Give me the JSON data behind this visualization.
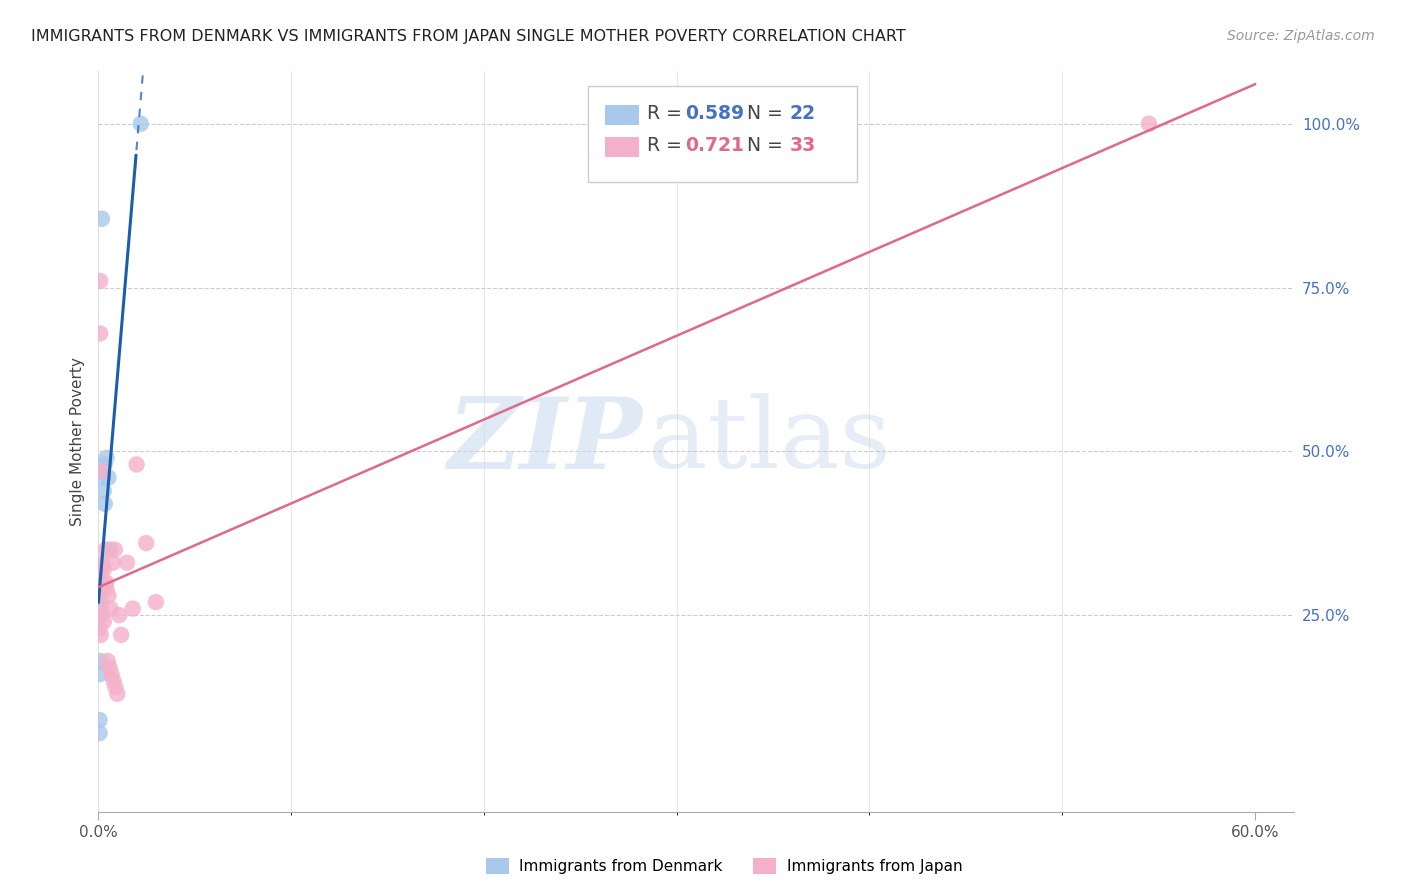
{
  "title": "IMMIGRANTS FROM DENMARK VS IMMIGRANTS FROM JAPAN SINGLE MOTHER POVERTY CORRELATION CHART",
  "source": "Source: ZipAtlas.com",
  "ylabel": "Single Mother Poverty",
  "denmark_color": "#a8c8ec",
  "denmark_line_color": "#1a5faa",
  "japan_color": "#f4b0c8",
  "japan_line_color": "#e06888",
  "accent_blue": "#4472c4",
  "accent_pink": "#e06888",
  "right_ytick_vals": [
    0.25,
    0.5,
    0.75,
    1.0
  ],
  "right_ytick_labels": [
    "25.0%",
    "50.0%",
    "75.0%",
    "100.0%"
  ],
  "xtick_labels": [
    "0.0%",
    "60.0%"
  ],
  "xtick_vals": [
    0.0,
    0.6
  ],
  "xlim": [
    0.0,
    0.62
  ],
  "ylim": [
    -0.05,
    1.08
  ],
  "denmark_x": [
    0.0005,
    0.0012,
    0.0018,
    0.0025,
    0.0032,
    0.0042,
    0.0052,
    0.006,
    0.0028,
    0.0033,
    0.0006,
    0.0006,
    0.0006,
    0.0006,
    0.0013,
    0.001,
    0.0007,
    0.0006,
    0.0006,
    0.0007,
    0.0007,
    0.022
  ],
  "denmark_y": [
    0.285,
    0.325,
    0.855,
    0.46,
    0.48,
    0.49,
    0.46,
    0.35,
    0.44,
    0.42,
    0.3,
    0.29,
    0.28,
    0.27,
    0.26,
    0.18,
    0.16,
    0.09,
    0.07,
    0.295,
    0.29,
    1.0
  ],
  "japan_x": [
    0.0006,
    0.0006,
    0.0012,
    0.0018,
    0.0028,
    0.0042,
    0.0052,
    0.0063,
    0.0075,
    0.0085,
    0.0009,
    0.0009,
    0.0013,
    0.0014,
    0.0022,
    0.0028,
    0.0029,
    0.0038,
    0.004,
    0.0048,
    0.0058,
    0.0068,
    0.0078,
    0.0088,
    0.0098,
    0.0108,
    0.0118,
    0.0148,
    0.0178,
    0.0198,
    0.0248,
    0.0298,
    0.545
  ],
  "japan_y": [
    0.27,
    0.23,
    0.22,
    0.25,
    0.24,
    0.29,
    0.28,
    0.26,
    0.33,
    0.35,
    0.76,
    0.68,
    0.47,
    0.32,
    0.33,
    0.32,
    0.3,
    0.35,
    0.3,
    0.18,
    0.17,
    0.16,
    0.15,
    0.14,
    0.13,
    0.25,
    0.22,
    0.33,
    0.26,
    0.48,
    0.36,
    0.27,
    1.0
  ]
}
